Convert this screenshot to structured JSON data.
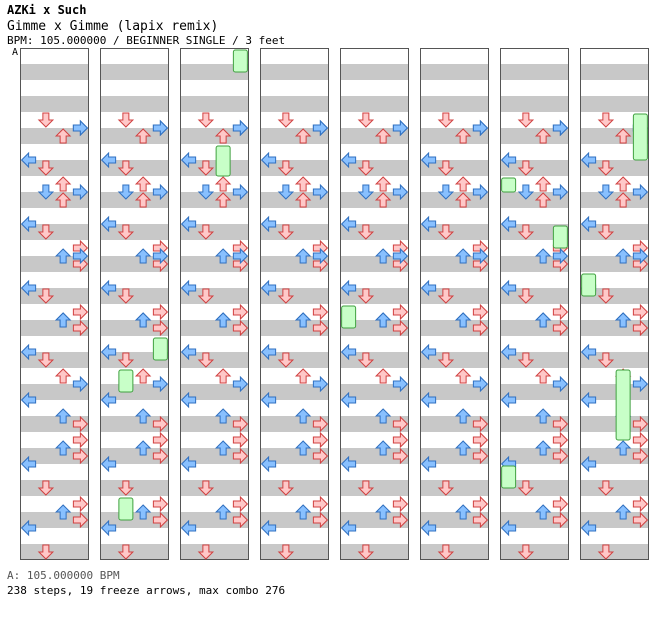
{
  "header": {
    "artist": "AZKi x Such",
    "title": "Gimme x Gimme (lapix remix)",
    "info": "BPM: 105.000000 / BEGINNER SINGLE / 3 feet"
  },
  "marker": "A",
  "footer": {
    "bpm_line": "A: 105.000000 BPM",
    "stats_line": "238 steps, 19 freeze arrows, max combo 276"
  },
  "colors": {
    "band": "#c8c8c8",
    "border": "#555555",
    "arrow_red_fill": "#ffc8c8",
    "arrow_red_stroke": "#d04040",
    "arrow_blue_fill": "#88c0ff",
    "arrow_blue_stroke": "#3070c0",
    "freeze_fill": "#c8ffc8",
    "freeze_stroke": "#40a040"
  },
  "chart_data": {
    "type": "step-chart",
    "columns": 8,
    "measures_per_column": 8,
    "lanes": [
      "left",
      "down",
      "up",
      "right"
    ],
    "measures": [
      {
        "notes": [],
        "freezes": []
      },
      {
        "notes": [
          [
            1,
            0
          ],
          [
            3,
            1
          ],
          [
            2,
            2
          ],
          [
            3,
            1
          ],
          [
            0,
            5
          ],
          [
            1,
            6
          ]
        ],
        "freezes": []
      },
      {
        "notes": [
          [
            2,
            0
          ],
          [
            1,
            1
          ],
          [
            2,
            2
          ],
          [
            3,
            1
          ],
          [
            0,
            5
          ],
          [
            1,
            6
          ]
        ],
        "freezes": []
      },
      {
        "notes": [
          [
            3,
            0
          ],
          [
            2,
            1
          ],
          [
            3,
            2
          ],
          [
            3,
            1
          ],
          [
            0,
            5
          ],
          [
            1,
            6
          ]
        ],
        "freezes": []
      },
      {
        "notes": [
          [
            3,
            0
          ],
          [
            2,
            1
          ],
          [
            3,
            2
          ],
          [
            2,
            1
          ],
          [
            0,
            5
          ],
          [
            1,
            6
          ]
        ],
        "freezes": []
      },
      {
        "notes": [
          [
            2,
            0
          ],
          [
            3,
            1
          ],
          [
            0,
            3
          ],
          [
            2,
            5
          ],
          [
            3,
            6
          ]
        ],
        "freezes": []
      },
      {
        "notes": [
          [
            3,
            0
          ],
          [
            2,
            1
          ],
          [
            3,
            2
          ],
          [
            0,
            3
          ],
          [
            1,
            6
          ]
        ],
        "freezes": []
      },
      {
        "notes": [
          [
            3,
            0
          ],
          [
            2,
            1
          ],
          [
            3,
            2
          ],
          [
            0,
            3
          ],
          [
            1,
            6
          ]
        ],
        "freezes": []
      }
    ],
    "stats": {
      "steps": 238,
      "freeze_arrows": 19,
      "max_combo": 276
    },
    "bpm": 105
  }
}
